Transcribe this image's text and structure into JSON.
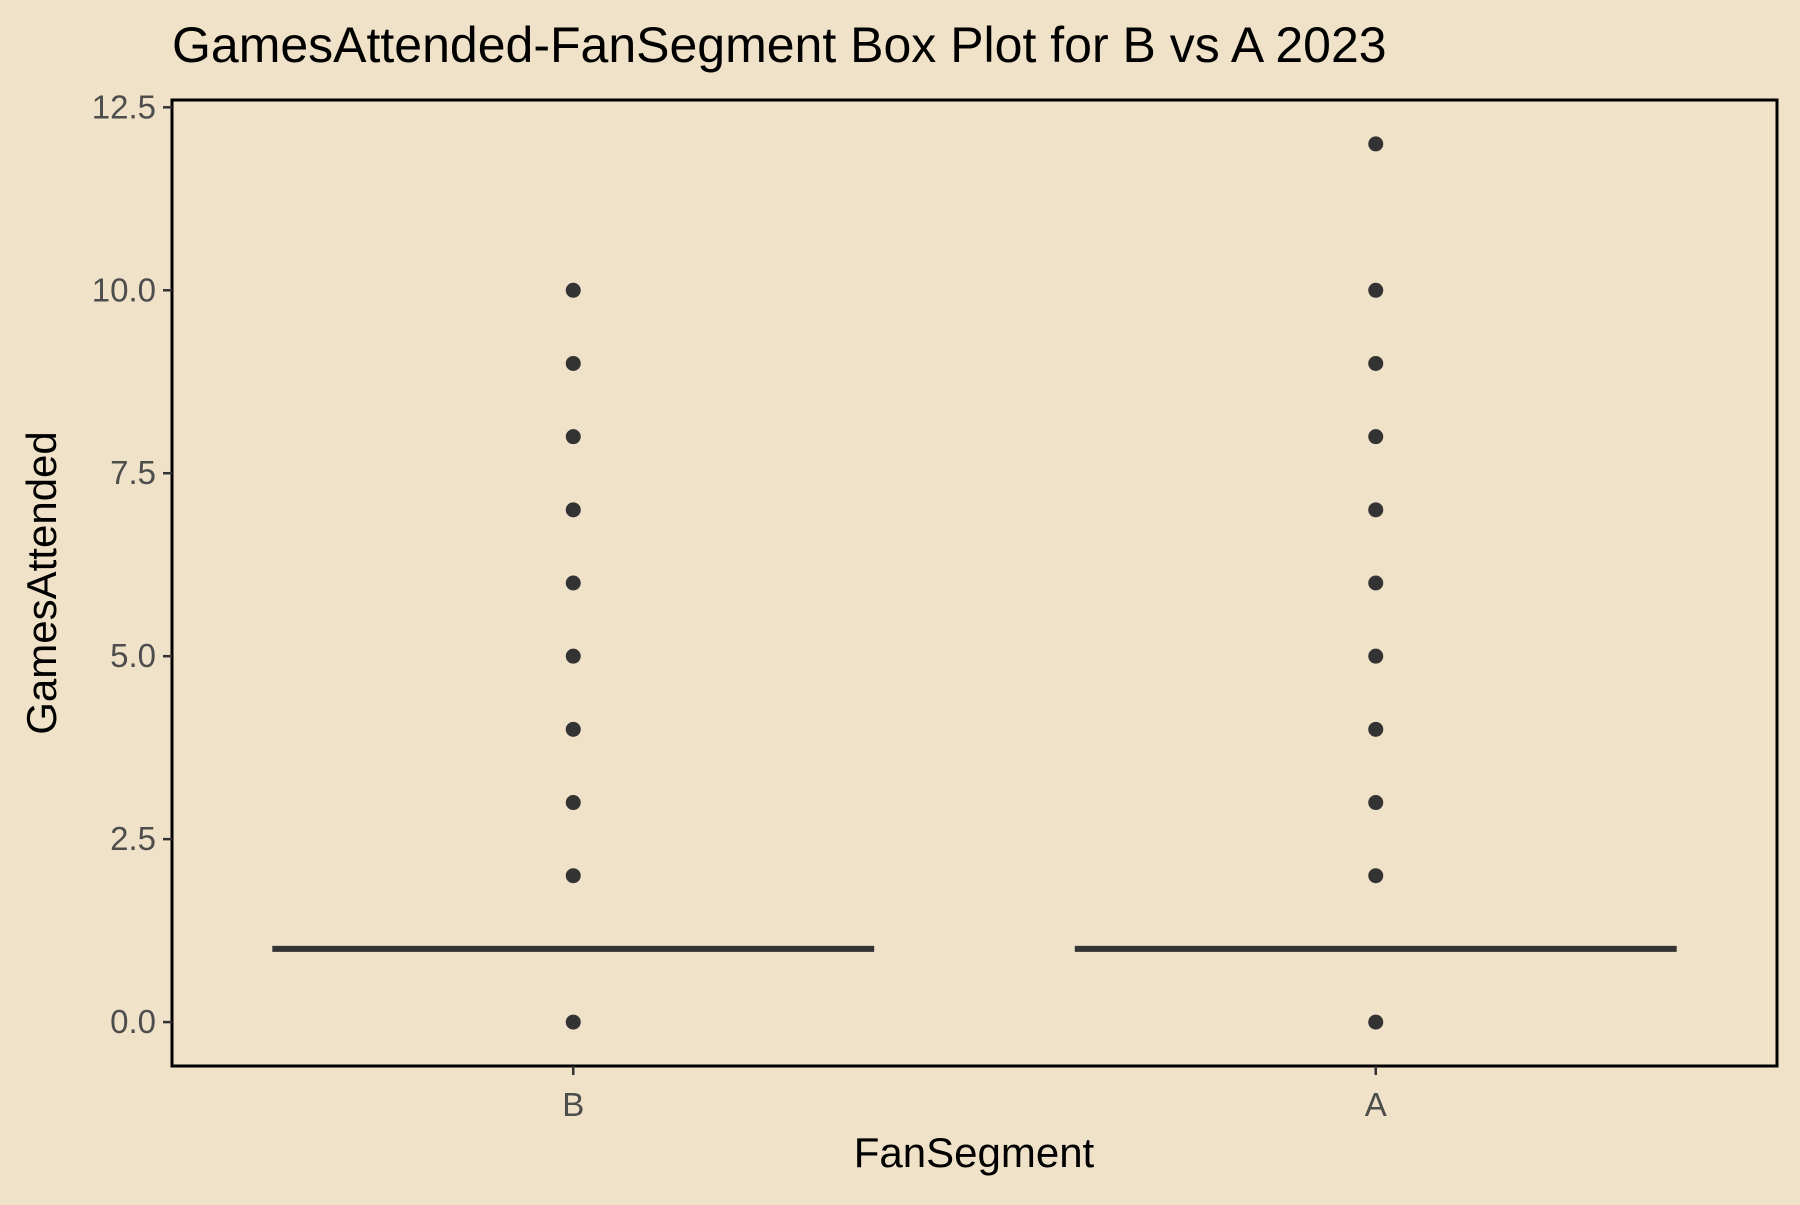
{
  "chart_data": {
    "type": "box",
    "title": "GamesAttended-FanSegment Box Plot for B vs A 2023",
    "xlabel": "FanSegment",
    "ylabel": "GamesAttended",
    "categories": [
      "B",
      "A"
    ],
    "ylim": [
      -0.6,
      12.6
    ],
    "yticks": [
      0.0,
      2.5,
      5.0,
      7.5,
      10.0,
      12.5
    ],
    "ytick_labels": [
      "0.0",
      "2.5",
      "5.0",
      "7.5",
      "10.0",
      "12.5"
    ],
    "grid": false,
    "legend": "none",
    "boxes": [
      {
        "category": "B",
        "q1": 1,
        "median": 1,
        "q3": 1,
        "whisker_low": 1,
        "whisker_high": 1,
        "outliers": [
          0,
          2,
          3,
          4,
          5,
          6,
          7,
          8,
          9,
          10
        ]
      },
      {
        "category": "A",
        "q1": 1,
        "median": 1,
        "q3": 1,
        "whisker_low": 1,
        "whisker_high": 1,
        "outliers": [
          0,
          2,
          3,
          4,
          5,
          6,
          7,
          8,
          9,
          10,
          12
        ]
      }
    ],
    "colors": {
      "background": "#F0E2C8",
      "box_line": "#333333",
      "point": "#333333",
      "tick_label": "#4D4D4D",
      "axis": "#000000"
    }
  }
}
